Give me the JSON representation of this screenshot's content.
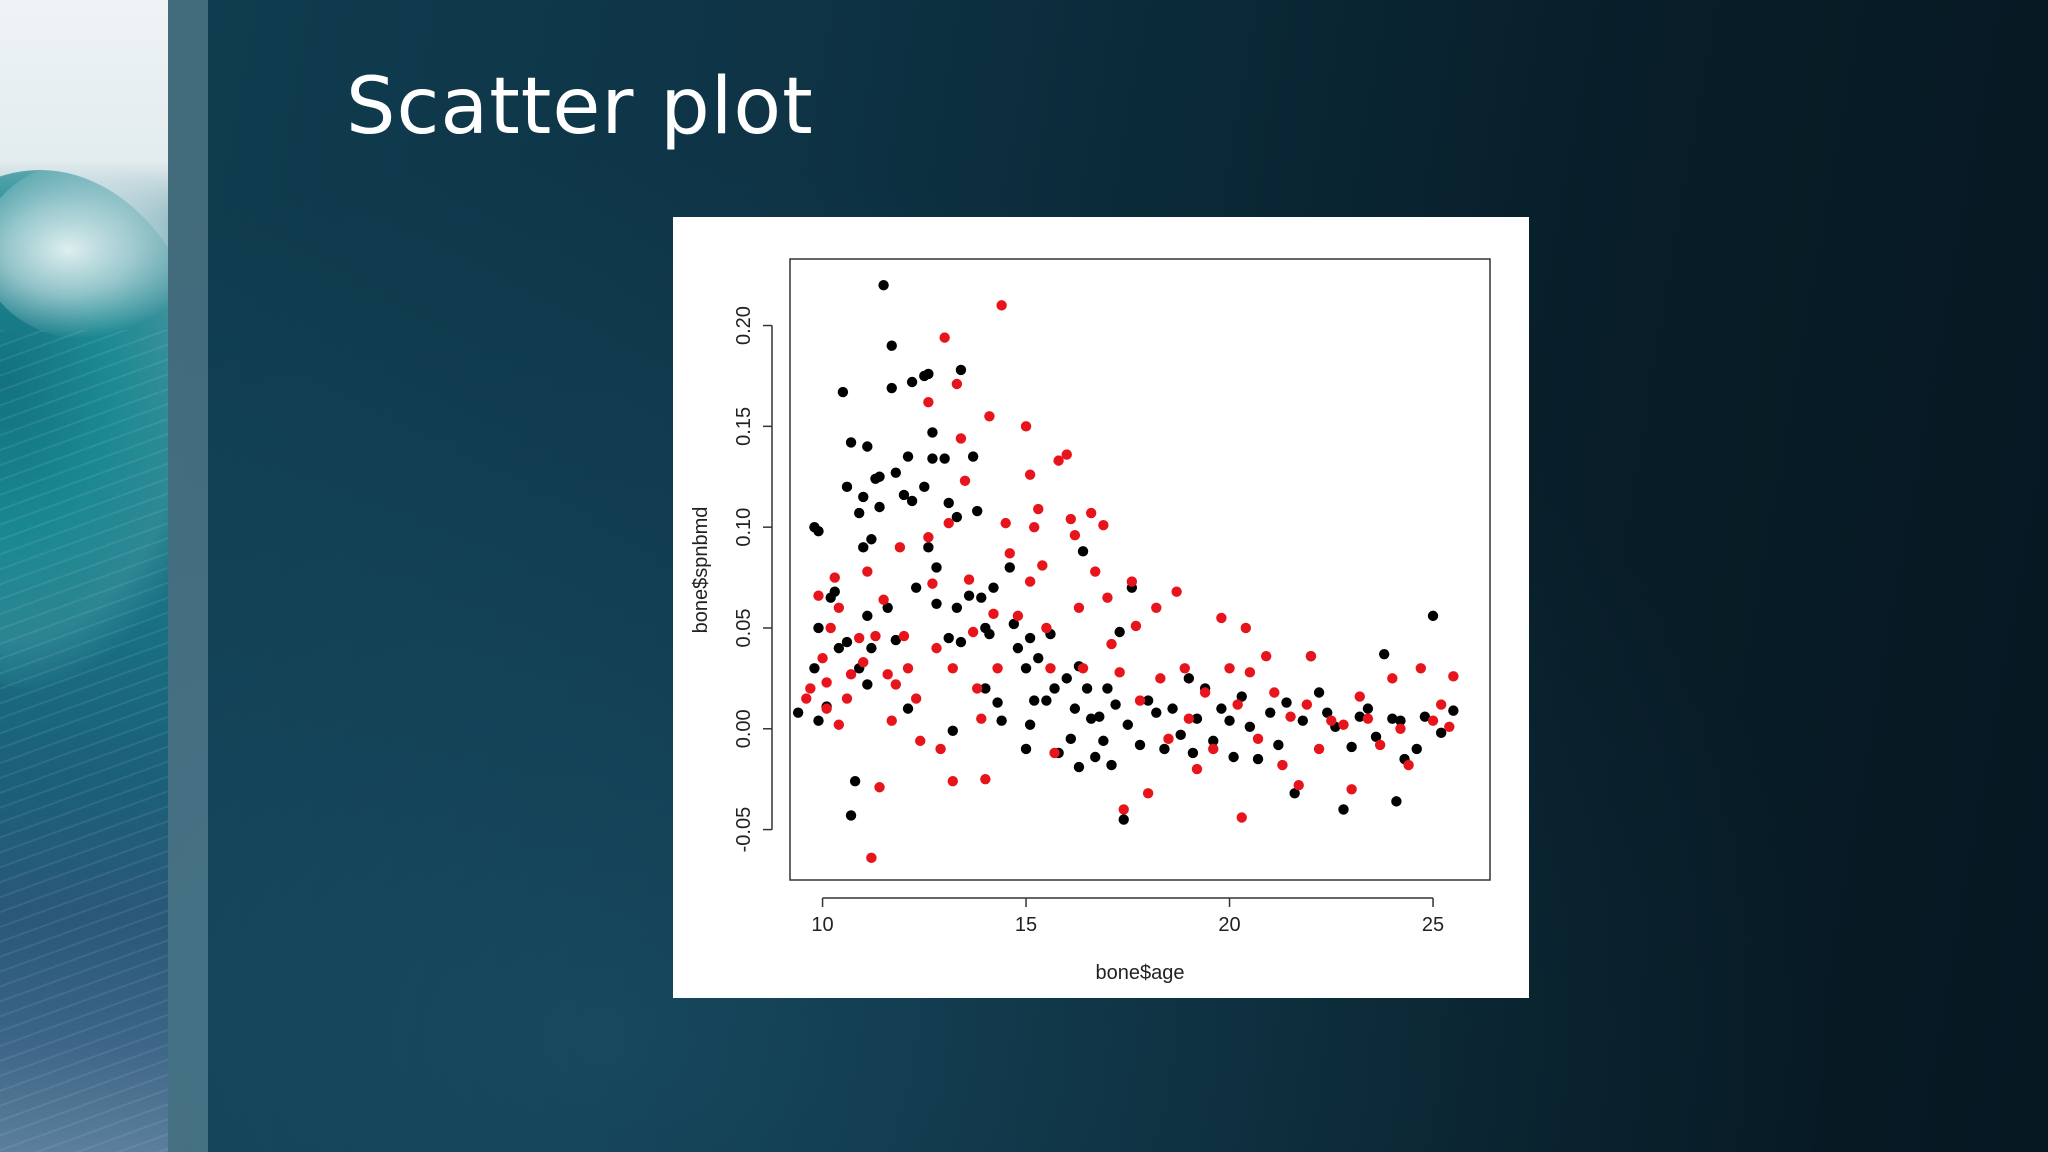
{
  "slide": {
    "title": "Scatter plot"
  },
  "colors": {
    "series_black": "#000000",
    "series_red": "#e8141b",
    "chart_background": "#ffffff"
  },
  "chart_data": {
    "type": "scatter",
    "title": "",
    "xlabel": "bone$age",
    "ylabel": "bone$spnbmd",
    "xlim": [
      9.2,
      26.4
    ],
    "ylim": [
      -0.075,
      0.233
    ],
    "x_ticks": [
      10,
      15,
      20,
      25
    ],
    "x_tick_labels": [
      "10",
      "15",
      "20",
      "25"
    ],
    "y_ticks": [
      -0.05,
      0.0,
      0.05,
      0.1,
      0.15,
      0.2
    ],
    "y_tick_labels": [
      "-0.05",
      "0.00",
      "0.05",
      "0.10",
      "0.15",
      "0.20"
    ],
    "grid": false,
    "legend": "none",
    "series": [
      {
        "color": "black",
        "points": [
          [
            9.4,
            0.008
          ],
          [
            9.8,
            0.1
          ],
          [
            9.9,
            0.098
          ],
          [
            9.9,
            0.05
          ],
          [
            9.8,
            0.03
          ],
          [
            9.9,
            0.004
          ],
          [
            10.1,
            0.011
          ],
          [
            10.2,
            0.065
          ],
          [
            10.3,
            0.068
          ],
          [
            10.5,
            0.167
          ],
          [
            10.4,
            0.04
          ],
          [
            10.7,
            0.142
          ],
          [
            10.6,
            0.12
          ],
          [
            10.6,
            0.043
          ],
          [
            10.7,
            -0.043
          ],
          [
            10.8,
            -0.026
          ],
          [
            10.9,
            0.107
          ],
          [
            10.9,
            0.03
          ],
          [
            11.0,
            0.115
          ],
          [
            11.0,
            0.09
          ],
          [
            11.1,
            0.14
          ],
          [
            11.1,
            0.056
          ],
          [
            11.1,
            0.022
          ],
          [
            11.2,
            0.094
          ],
          [
            11.2,
            0.04
          ],
          [
            11.3,
            0.124
          ],
          [
            11.4,
            0.11
          ],
          [
            11.4,
            0.125
          ],
          [
            11.5,
            0.22
          ],
          [
            11.6,
            0.06
          ],
          [
            11.7,
            0.19
          ],
          [
            11.7,
            0.169
          ],
          [
            11.8,
            0.127
          ],
          [
            11.8,
            0.044
          ],
          [
            12.0,
            0.116
          ],
          [
            12.1,
            0.135
          ],
          [
            12.1,
            0.01
          ],
          [
            12.2,
            0.172
          ],
          [
            12.2,
            0.113
          ],
          [
            12.3,
            0.07
          ],
          [
            12.5,
            0.12
          ],
          [
            12.5,
            0.175
          ],
          [
            12.6,
            0.176
          ],
          [
            12.6,
            0.09
          ],
          [
            12.7,
            0.147
          ],
          [
            12.7,
            0.134
          ],
          [
            12.8,
            0.08
          ],
          [
            12.8,
            0.062
          ],
          [
            13.0,
            0.134
          ],
          [
            13.1,
            0.112
          ],
          [
            13.1,
            0.045
          ],
          [
            13.2,
            -0.001
          ],
          [
            13.3,
            0.105
          ],
          [
            13.3,
            0.06
          ],
          [
            13.4,
            0.178
          ],
          [
            13.4,
            0.043
          ],
          [
            13.6,
            0.066
          ],
          [
            13.7,
            0.135
          ],
          [
            13.8,
            0.108
          ],
          [
            13.9,
            0.065
          ],
          [
            14.0,
            0.02
          ],
          [
            14.0,
            0.05
          ],
          [
            14.1,
            0.047
          ],
          [
            14.2,
            0.07
          ],
          [
            14.3,
            0.013
          ],
          [
            14.4,
            0.004
          ],
          [
            14.6,
            0.08
          ],
          [
            14.7,
            0.052
          ],
          [
            14.8,
            0.04
          ],
          [
            15.0,
            0.03
          ],
          [
            15.0,
            -0.01
          ],
          [
            15.1,
            0.045
          ],
          [
            15.1,
            0.002
          ],
          [
            15.2,
            0.014
          ],
          [
            15.3,
            0.035
          ],
          [
            15.5,
            0.014
          ],
          [
            15.6,
            0.047
          ],
          [
            15.7,
            0.02
          ],
          [
            15.8,
            -0.012
          ],
          [
            16.0,
            0.025
          ],
          [
            16.1,
            -0.005
          ],
          [
            16.2,
            0.01
          ],
          [
            16.3,
            0.031
          ],
          [
            16.3,
            -0.019
          ],
          [
            16.4,
            0.088
          ],
          [
            16.5,
            0.02
          ],
          [
            16.6,
            0.005
          ],
          [
            16.7,
            -0.014
          ],
          [
            16.8,
            0.006
          ],
          [
            16.9,
            -0.006
          ],
          [
            17.0,
            0.02
          ],
          [
            17.1,
            -0.018
          ],
          [
            17.2,
            0.012
          ],
          [
            17.3,
            0.048
          ],
          [
            17.4,
            -0.045
          ],
          [
            17.5,
            0.002
          ],
          [
            17.6,
            0.07
          ],
          [
            17.8,
            -0.008
          ],
          [
            18.0,
            0.014
          ],
          [
            18.2,
            0.008
          ],
          [
            18.4,
            -0.01
          ],
          [
            18.6,
            0.01
          ],
          [
            18.8,
            -0.003
          ],
          [
            19.0,
            0.025
          ],
          [
            19.1,
            -0.012
          ],
          [
            19.2,
            0.005
          ],
          [
            19.4,
            0.02
          ],
          [
            19.6,
            -0.006
          ],
          [
            19.8,
            0.01
          ],
          [
            20.0,
            0.004
          ],
          [
            20.1,
            -0.014
          ],
          [
            20.3,
            0.016
          ],
          [
            20.5,
            0.001
          ],
          [
            20.7,
            -0.015
          ],
          [
            21.0,
            0.008
          ],
          [
            21.2,
            -0.008
          ],
          [
            21.4,
            0.013
          ],
          [
            21.6,
            -0.032
          ],
          [
            21.8,
            0.004
          ],
          [
            22.0,
            0.036
          ],
          [
            22.2,
            0.018
          ],
          [
            22.4,
            0.008
          ],
          [
            22.6,
            0.001
          ],
          [
            22.8,
            -0.04
          ],
          [
            23.0,
            -0.009
          ],
          [
            23.2,
            0.006
          ],
          [
            23.4,
            0.01
          ],
          [
            23.6,
            -0.004
          ],
          [
            23.8,
            0.037
          ],
          [
            24.0,
            0.005
          ],
          [
            24.1,
            -0.036
          ],
          [
            24.2,
            0.004
          ],
          [
            24.3,
            -0.015
          ],
          [
            24.6,
            -0.01
          ],
          [
            24.8,
            0.006
          ],
          [
            25.0,
            0.056
          ],
          [
            25.2,
            -0.002
          ],
          [
            25.5,
            0.009
          ]
        ]
      },
      {
        "color": "red",
        "points": [
          [
            9.6,
            0.015
          ],
          [
            9.7,
            0.02
          ],
          [
            9.9,
            0.066
          ],
          [
            10.0,
            0.035
          ],
          [
            10.1,
            0.023
          ],
          [
            10.1,
            0.01
          ],
          [
            10.2,
            0.05
          ],
          [
            10.3,
            0.075
          ],
          [
            10.4,
            0.06
          ],
          [
            10.4,
            0.002
          ],
          [
            10.6,
            0.015
          ],
          [
            10.7,
            0.027
          ],
          [
            10.9,
            0.045
          ],
          [
            11.0,
            0.033
          ],
          [
            11.1,
            0.078
          ],
          [
            11.2,
            -0.064
          ],
          [
            11.3,
            0.046
          ],
          [
            11.4,
            -0.029
          ],
          [
            11.5,
            0.064
          ],
          [
            11.6,
            0.027
          ],
          [
            11.7,
            0.004
          ],
          [
            11.8,
            0.022
          ],
          [
            11.9,
            0.09
          ],
          [
            12.0,
            0.046
          ],
          [
            12.1,
            0.03
          ],
          [
            12.3,
            0.015
          ],
          [
            12.4,
            -0.006
          ],
          [
            12.6,
            0.162
          ],
          [
            12.6,
            0.095
          ],
          [
            12.7,
            0.072
          ],
          [
            12.8,
            0.04
          ],
          [
            12.9,
            -0.01
          ],
          [
            13.0,
            0.194
          ],
          [
            13.1,
            0.102
          ],
          [
            13.2,
            0.03
          ],
          [
            13.2,
            -0.026
          ],
          [
            13.3,
            0.171
          ],
          [
            13.4,
            0.144
          ],
          [
            13.5,
            0.123
          ],
          [
            13.6,
            0.074
          ],
          [
            13.7,
            0.048
          ],
          [
            13.8,
            0.02
          ],
          [
            13.9,
            0.005
          ],
          [
            14.0,
            -0.025
          ],
          [
            14.1,
            0.155
          ],
          [
            14.2,
            0.057
          ],
          [
            14.3,
            0.03
          ],
          [
            14.4,
            0.21
          ],
          [
            14.5,
            0.102
          ],
          [
            14.6,
            0.087
          ],
          [
            14.8,
            0.056
          ],
          [
            15.0,
            0.15
          ],
          [
            15.1,
            0.126
          ],
          [
            15.1,
            0.073
          ],
          [
            15.2,
            0.1
          ],
          [
            15.3,
            0.109
          ],
          [
            15.4,
            0.081
          ],
          [
            15.5,
            0.05
          ],
          [
            15.6,
            0.03
          ],
          [
            15.7,
            -0.012
          ],
          [
            15.8,
            0.133
          ],
          [
            16.0,
            0.136
          ],
          [
            16.1,
            0.104
          ],
          [
            16.2,
            0.096
          ],
          [
            16.3,
            0.06
          ],
          [
            16.4,
            0.03
          ],
          [
            16.6,
            0.107
          ],
          [
            16.7,
            0.078
          ],
          [
            16.9,
            0.101
          ],
          [
            17.0,
            0.065
          ],
          [
            17.1,
            0.042
          ],
          [
            17.3,
            0.028
          ],
          [
            17.4,
            -0.04
          ],
          [
            17.6,
            0.073
          ],
          [
            17.7,
            0.051
          ],
          [
            17.8,
            0.014
          ],
          [
            18.0,
            -0.032
          ],
          [
            18.2,
            0.06
          ],
          [
            18.3,
            0.025
          ],
          [
            18.5,
            -0.005
          ],
          [
            18.7,
            0.068
          ],
          [
            18.9,
            0.03
          ],
          [
            19.0,
            0.005
          ],
          [
            19.2,
            -0.02
          ],
          [
            19.4,
            0.018
          ],
          [
            19.6,
            -0.01
          ],
          [
            19.8,
            0.055
          ],
          [
            20.0,
            0.03
          ],
          [
            20.2,
            0.012
          ],
          [
            20.3,
            -0.044
          ],
          [
            20.4,
            0.05
          ],
          [
            20.5,
            0.028
          ],
          [
            20.7,
            -0.005
          ],
          [
            20.9,
            0.036
          ],
          [
            21.1,
            0.018
          ],
          [
            21.3,
            -0.018
          ],
          [
            21.5,
            0.006
          ],
          [
            21.7,
            -0.028
          ],
          [
            21.9,
            0.012
          ],
          [
            22.0,
            0.036
          ],
          [
            22.2,
            -0.01
          ],
          [
            22.5,
            0.004
          ],
          [
            22.8,
            0.002
          ],
          [
            23.0,
            -0.03
          ],
          [
            23.2,
            0.016
          ],
          [
            23.4,
            0.005
          ],
          [
            23.7,
            -0.008
          ],
          [
            24.0,
            0.025
          ],
          [
            24.2,
            0.0
          ],
          [
            24.4,
            -0.018
          ],
          [
            24.7,
            0.03
          ],
          [
            25.0,
            0.004
          ],
          [
            25.2,
            0.012
          ],
          [
            25.4,
            0.001
          ],
          [
            25.5,
            0.026
          ]
        ]
      }
    ]
  }
}
